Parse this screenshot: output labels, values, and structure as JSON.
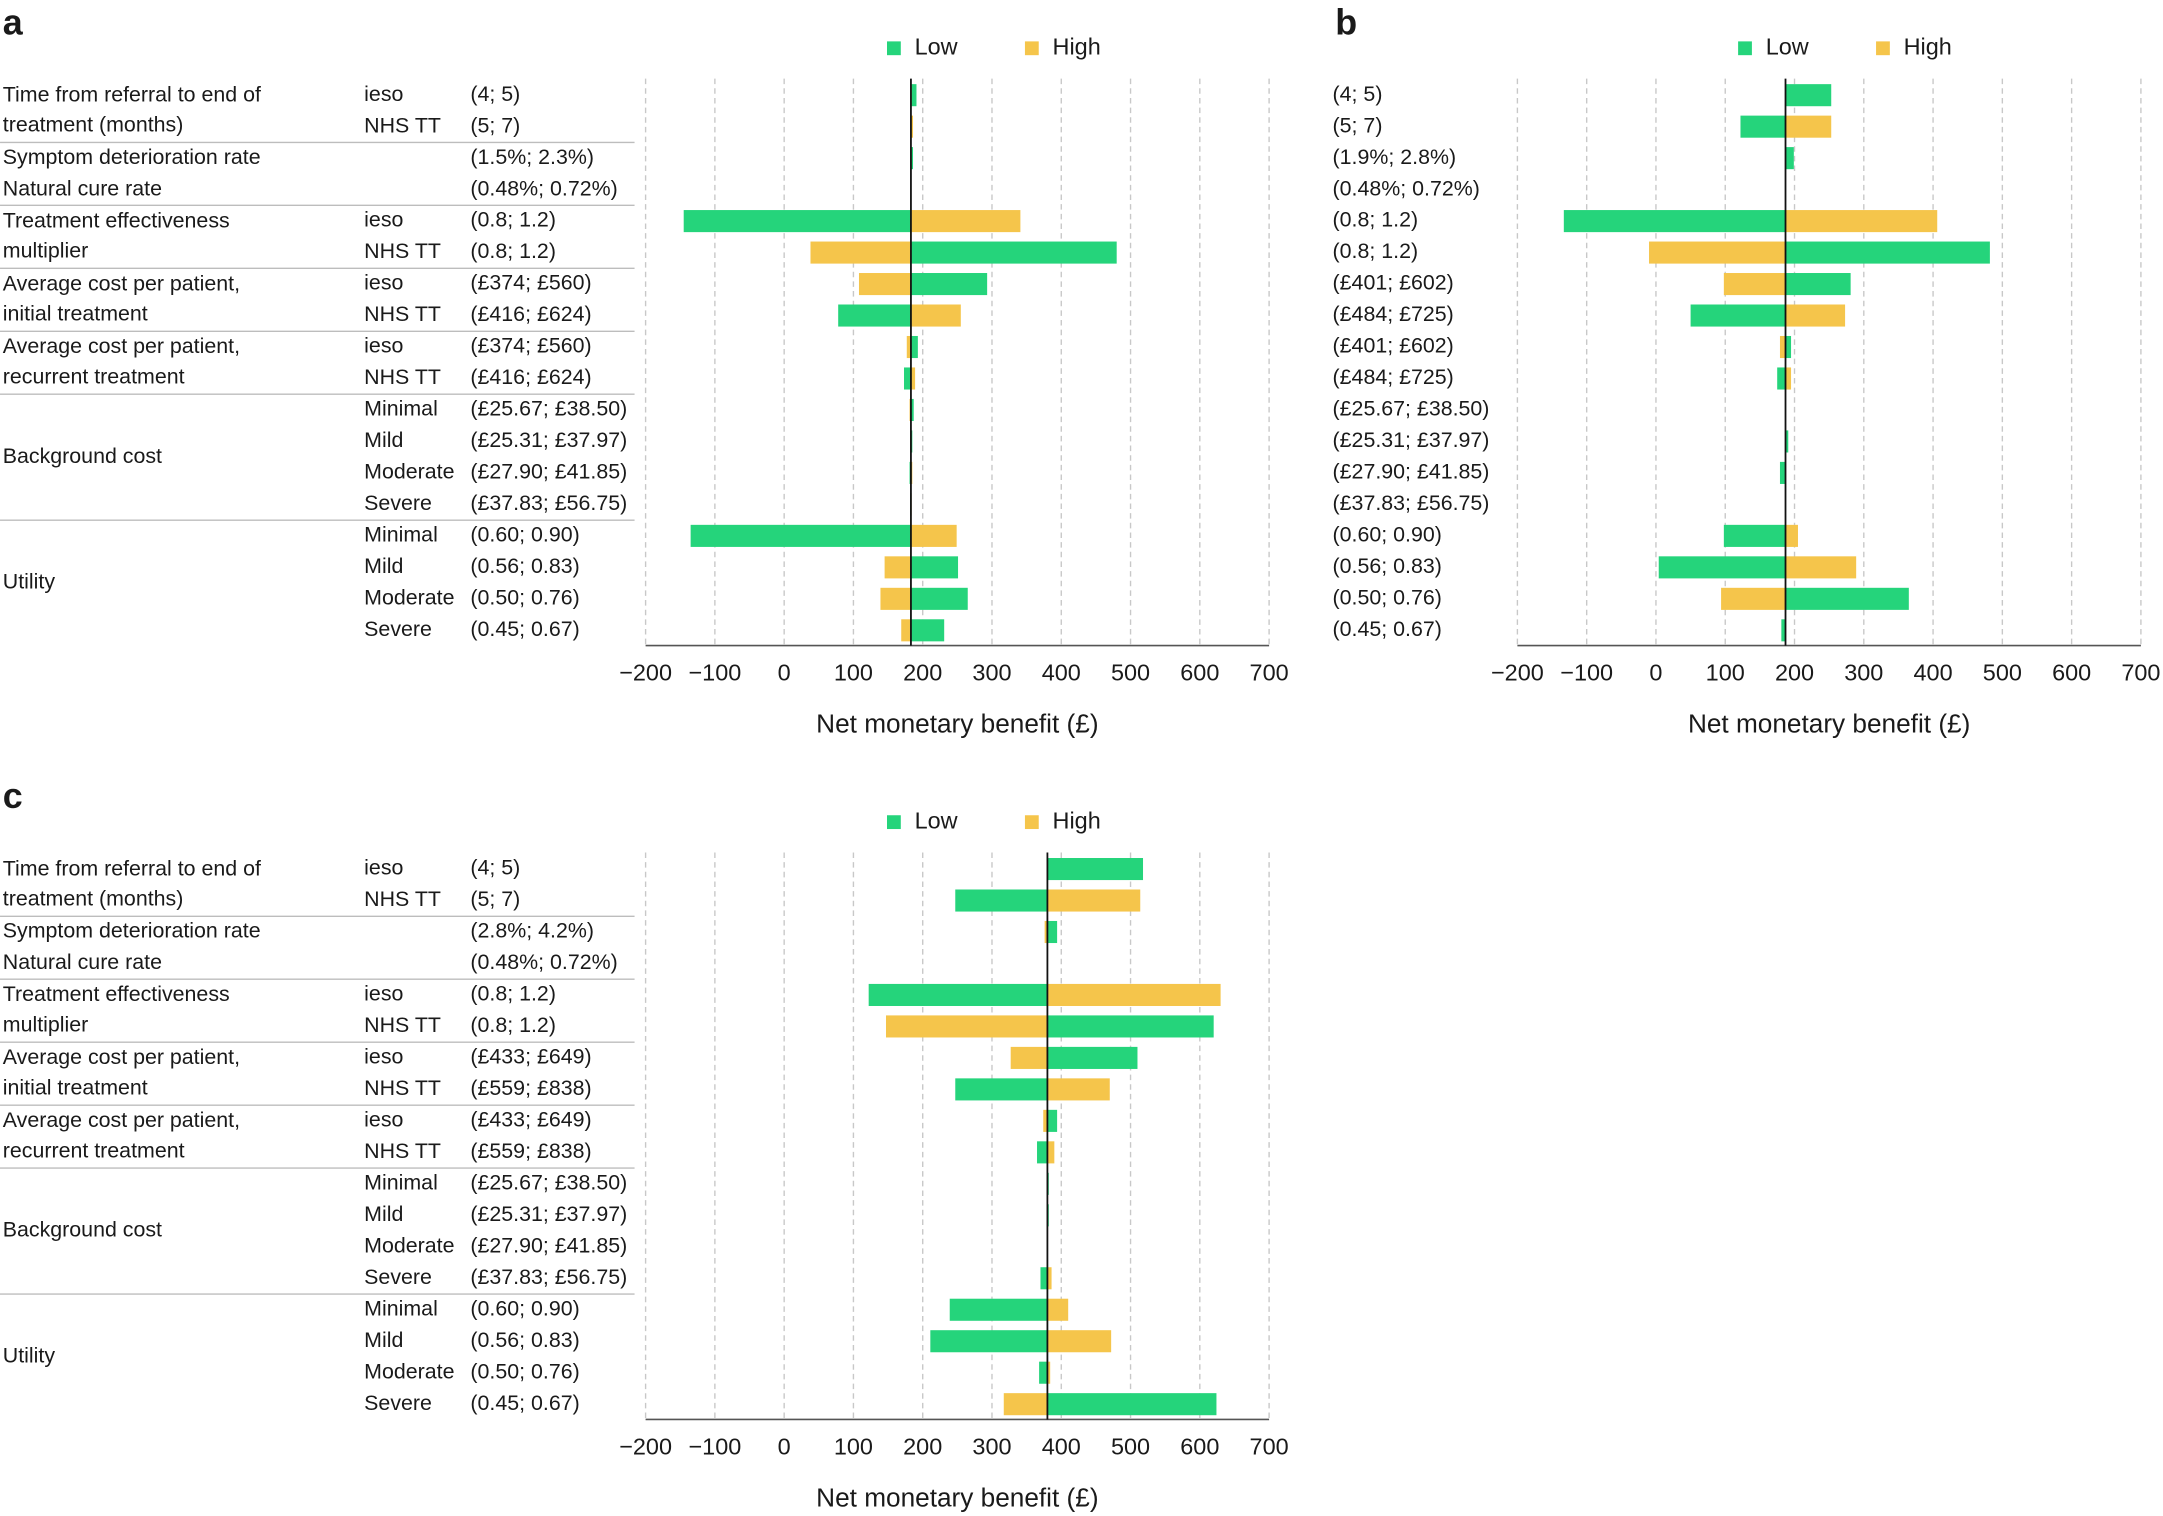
{
  "chart_data": [
    {
      "type": "tornado",
      "panel": "a",
      "xlabel": "Net monetary benefit (£)",
      "xlim": [
        -200,
        700
      ],
      "xticks": [
        {
          "value": -200,
          "label": "−200"
        },
        {
          "value": -100,
          "label": "−100"
        },
        0,
        100,
        200,
        300,
        400,
        500,
        600,
        700
      ],
      "grid": true,
      "legend": "top",
      "base": 183,
      "categories": [
        "(4; 5)",
        "(5; 7)",
        "(1.5%; 2.3%)",
        "(0.48%; 0.72%)",
        "(0.8; 1.2)",
        "(0.8; 1.2)",
        "(£374; £560)",
        "(£416; £624)",
        "(£374; £560)",
        "(£416; £624)",
        "(£25.67; £38.50)",
        "(£25.31; £37.97)",
        "(£27.90; £41.85)",
        "(£37.83; £56.75)",
        "(0.60; 0.90)",
        "(0.56; 0.83)",
        "(0.50; 0.76)",
        "(0.45; 0.67)"
      ],
      "groups": [
        {
          "label": [
            "Time from referral to end of",
            "treatment (months)"
          ],
          "items": [
            "ieso",
            "NHS TT"
          ]
        },
        {
          "label": [
            "Symptom deterioration rate"
          ],
          "items": [
            null
          ]
        },
        {
          "label": [
            "Natural cure rate"
          ],
          "items": [
            null
          ]
        },
        {
          "label": [
            "Treatment effectiveness",
            "multiplier"
          ],
          "items": [
            "ieso",
            "NHS TT"
          ]
        },
        {
          "label": [
            "Average cost per patient,",
            "initial treatment"
          ],
          "items": [
            "ieso",
            "NHS TT"
          ]
        },
        {
          "label": [
            "Average cost per patient,",
            "recurrent treatment"
          ],
          "items": [
            "ieso",
            "NHS TT"
          ]
        },
        {
          "label": [
            "Background cost"
          ],
          "items": [
            "Minimal",
            "Mild",
            "Moderate",
            "Severe"
          ]
        },
        {
          "label": [
            "Utility"
          ],
          "items": [
            "Minimal",
            "Mild",
            "Moderate",
            "Severe"
          ]
        }
      ],
      "series": [
        {
          "name": "Low",
          "color": "#25d47b",
          "values": [
            191,
            183,
            186,
            183,
            -145,
            480,
            293,
            78,
            193,
            173,
            187,
            185,
            181,
            182,
            -135,
            251,
            265,
            231
          ]
        },
        {
          "name": "High",
          "color": "#f5c54b",
          "values": [
            184,
            186,
            184,
            183,
            341,
            38,
            108,
            255,
            177,
            189,
            181,
            182,
            185,
            184,
            249,
            145,
            139,
            169
          ]
        }
      ]
    },
    {
      "type": "tornado",
      "panel": "b",
      "xlabel": "Net monetary benefit (£)",
      "xlim": [
        -200,
        700
      ],
      "xticks": [
        {
          "value": -200,
          "label": "−200"
        },
        {
          "value": -100,
          "label": "−100"
        },
        0,
        100,
        200,
        300,
        400,
        500,
        600,
        700
      ],
      "grid": true,
      "legend": "top",
      "base": 187,
      "categories": [
        "(4; 5)",
        "(5; 7)",
        "(1.9%; 2.8%)",
        "(0.48%; 0.72%)",
        "(0.8; 1.2)",
        "(0.8; 1.2)",
        "(£401; £602)",
        "(£484; £725)",
        "(£401; £602)",
        "(£484; £725)",
        "(£25.67; £38.50)",
        "(£25.31; £37.97)",
        "(£27.90; £41.85)",
        "(£37.83; £56.75)",
        "(0.60; 0.90)",
        "(0.56; 0.83)",
        "(0.50; 0.76)",
        "(0.45; 0.67)"
      ],
      "series": [
        {
          "name": "Low",
          "color": "#25d47b",
          "values": [
            253,
            122,
            199,
            187,
            -133,
            482,
            281,
            50,
            195,
            175,
            187,
            191,
            179,
            187,
            98,
            4,
            365,
            181
          ]
        },
        {
          "name": "High",
          "color": "#f5c54b",
          "values": [
            187,
            253,
            187,
            187,
            406,
            -10,
            98,
            273,
            179,
            195,
            187,
            187,
            187,
            187,
            205,
            289,
            94,
            187
          ]
        }
      ]
    },
    {
      "type": "tornado",
      "panel": "c",
      "xlabel": "Net monetary benefit (£)",
      "xlim": [
        -200,
        700
      ],
      "xticks": [
        {
          "value": -200,
          "label": "−200"
        },
        {
          "value": -100,
          "label": "−100"
        },
        0,
        100,
        200,
        300,
        400,
        500,
        600,
        700
      ],
      "grid": true,
      "legend": "top",
      "base": 380,
      "categories": [
        "(4; 5)",
        "(5; 7)",
        "(2.8%; 4.2%)",
        "(0.48%; 0.72%)",
        "(0.8; 1.2)",
        "(0.8; 1.2)",
        "(£433; £649)",
        "(£559; £838)",
        "(£433; £649)",
        "(£559; £838)",
        "(£25.67; £38.50)",
        "(£25.31; £37.97)",
        "(£27.90; £41.85)",
        "(£37.83; £56.75)",
        "(0.60; 0.90)",
        "(0.56; 0.83)",
        "(0.50; 0.76)",
        "(0.45; 0.67)"
      ],
      "groups": [
        {
          "label": [
            "Time from referral to end of",
            "treatment (months)"
          ],
          "items": [
            "ieso",
            "NHS TT"
          ]
        },
        {
          "label": [
            "Symptom deterioration rate"
          ],
          "items": [
            null
          ]
        },
        {
          "label": [
            "Natural cure rate"
          ],
          "items": [
            null
          ]
        },
        {
          "label": [
            "Treatment effectiveness",
            "multiplier"
          ],
          "items": [
            "ieso",
            "NHS TT"
          ]
        },
        {
          "label": [
            "Average cost per patient,",
            "initial treatment"
          ],
          "items": [
            "ieso",
            "NHS TT"
          ]
        },
        {
          "label": [
            "Average cost per patient,",
            "recurrent treatment"
          ],
          "items": [
            "ieso",
            "NHS TT"
          ]
        },
        {
          "label": [
            "Background cost"
          ],
          "items": [
            "Minimal",
            "Mild",
            "Moderate",
            "Severe"
          ]
        },
        {
          "label": [
            "Utility"
          ],
          "items": [
            "Minimal",
            "Mild",
            "Moderate",
            "Severe"
          ]
        }
      ],
      "series": [
        {
          "name": "Low",
          "color": "#25d47b",
          "values": [
            518,
            247,
            394,
            380,
            122,
            620,
            510,
            247,
            394,
            365,
            382,
            382,
            380,
            370,
            239,
            211,
            368,
            624
          ]
        },
        {
          "name": "High",
          "color": "#f5c54b",
          "values": [
            380,
            514,
            376,
            380,
            630,
            147,
            327,
            470,
            374,
            390,
            380,
            380,
            380,
            386,
            410,
            472,
            384,
            317
          ]
        }
      ]
    }
  ]
}
